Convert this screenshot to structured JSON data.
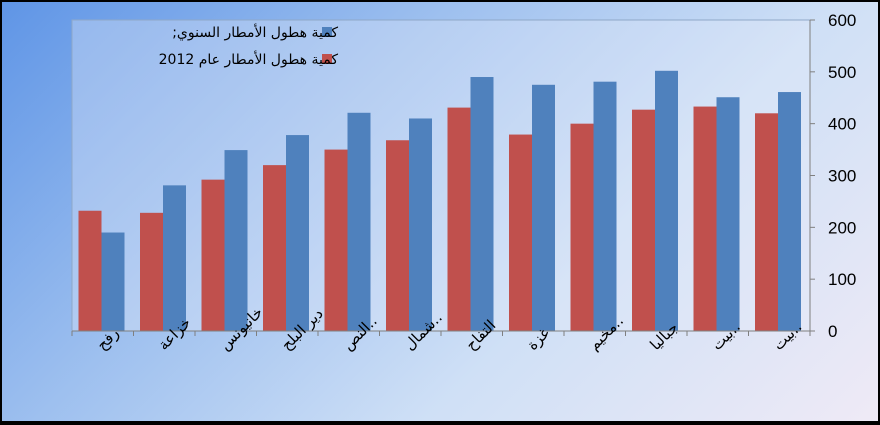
{
  "chart_data": {
    "type": "bar",
    "categories": [
      "رفح",
      "خزاعة",
      "خانيونس",
      "دير البلح",
      "النص..",
      "شمال..",
      "التفاح",
      "غزة",
      "مخيم..",
      "جباليا",
      "بيت..",
      "بيت.."
    ],
    "series": [
      {
        "name": "كمية هطول الأمطار عام 2012",
        "color": "#c0504d",
        "values": [
          232,
          228,
          292,
          320,
          350,
          368,
          431,
          379,
          400,
          427,
          433,
          420
        ]
      },
      {
        "name": "كمية هطول الأمطار السنوي;",
        "color": "#4f81bd",
        "values": [
          190,
          281,
          349,
          378,
          421,
          410,
          490,
          475,
          481,
          502,
          451,
          461
        ]
      }
    ],
    "legend_order": [
      1,
      0
    ],
    "ylim": [
      0,
      600
    ],
    "yticks": [
      0,
      100,
      200,
      300,
      400,
      500,
      600
    ],
    "y_axis_position": "right",
    "legend_position": "top-center",
    "grid": false
  }
}
